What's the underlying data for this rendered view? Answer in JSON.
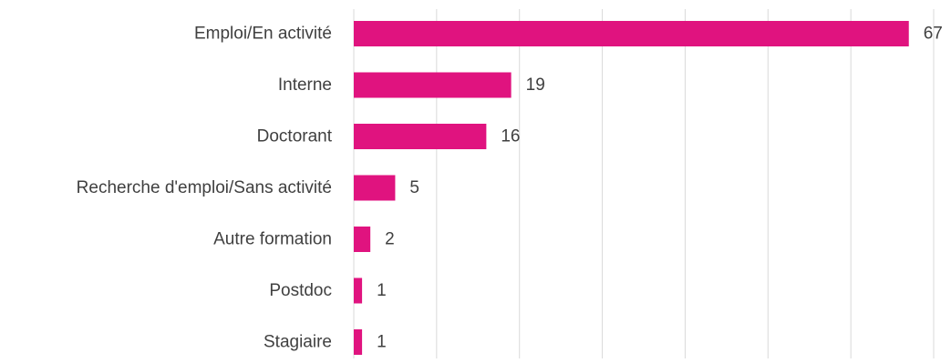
{
  "chart_data": {
    "type": "bar",
    "orientation": "horizontal",
    "title": "",
    "xlabel": "",
    "ylabel": "",
    "categories": [
      "Emploi/En activité",
      "Interne",
      "Doctorant",
      "Recherche d'emploi/Sans activité",
      "Autre formation",
      "Postdoc",
      "Stagiaire"
    ],
    "values": [
      67,
      19,
      16,
      5,
      2,
      1,
      1
    ],
    "xlim": [
      0,
      70
    ],
    "grid": true,
    "legend": "none",
    "bar_color": "#e0137f",
    "grid_color": "#d9d9d9",
    "text_color": "#404040"
  }
}
